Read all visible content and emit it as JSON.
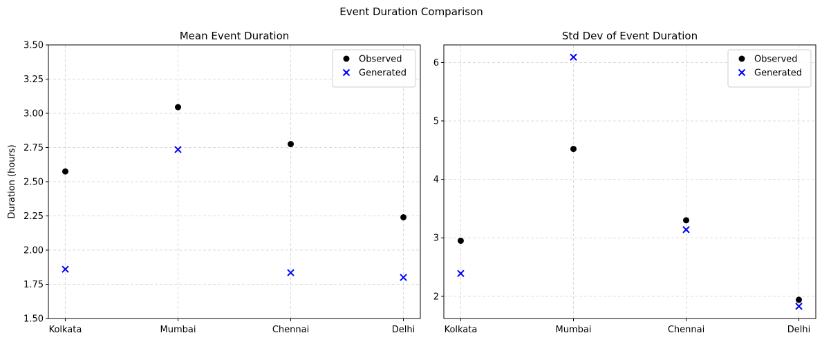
{
  "figure_title": "Event Duration Comparison",
  "chart_data": [
    {
      "type": "scatter",
      "title": "Mean Event Duration",
      "xlabel": "",
      "ylabel": "Duration (hours)",
      "categories": [
        "Kolkata",
        "Mumbai",
        "Chennai",
        "Delhi"
      ],
      "ylim": [
        1.5,
        3.5
      ],
      "yticks": [
        "1.50",
        "1.75",
        "2.00",
        "2.25",
        "2.50",
        "2.75",
        "3.00",
        "3.25",
        "3.50"
      ],
      "grid": true,
      "legend_position": "top-right",
      "series": [
        {
          "name": "Observed",
          "marker": "circle",
          "color": "#000000",
          "values": [
            2.575,
            3.045,
            2.775,
            2.24
          ]
        },
        {
          "name": "Generated",
          "marker": "x",
          "color": "#0000ff",
          "values": [
            1.86,
            2.735,
            1.835,
            1.8
          ]
        }
      ]
    },
    {
      "type": "scatter",
      "title": "Std Dev of Event Duration",
      "xlabel": "",
      "ylabel": "",
      "categories": [
        "Kolkata",
        "Mumbai",
        "Chennai",
        "Delhi"
      ],
      "ylim": [
        1.62,
        6.3
      ],
      "yticks": [
        "2",
        "3",
        "4",
        "5",
        "6"
      ],
      "grid": true,
      "legend_position": "top-right",
      "series": [
        {
          "name": "Observed",
          "marker": "circle",
          "color": "#000000",
          "values": [
            2.95,
            4.52,
            3.3,
            1.94
          ]
        },
        {
          "name": "Generated",
          "marker": "x",
          "color": "#0000ff",
          "values": [
            2.39,
            6.09,
            3.14,
            1.83
          ]
        }
      ]
    }
  ]
}
